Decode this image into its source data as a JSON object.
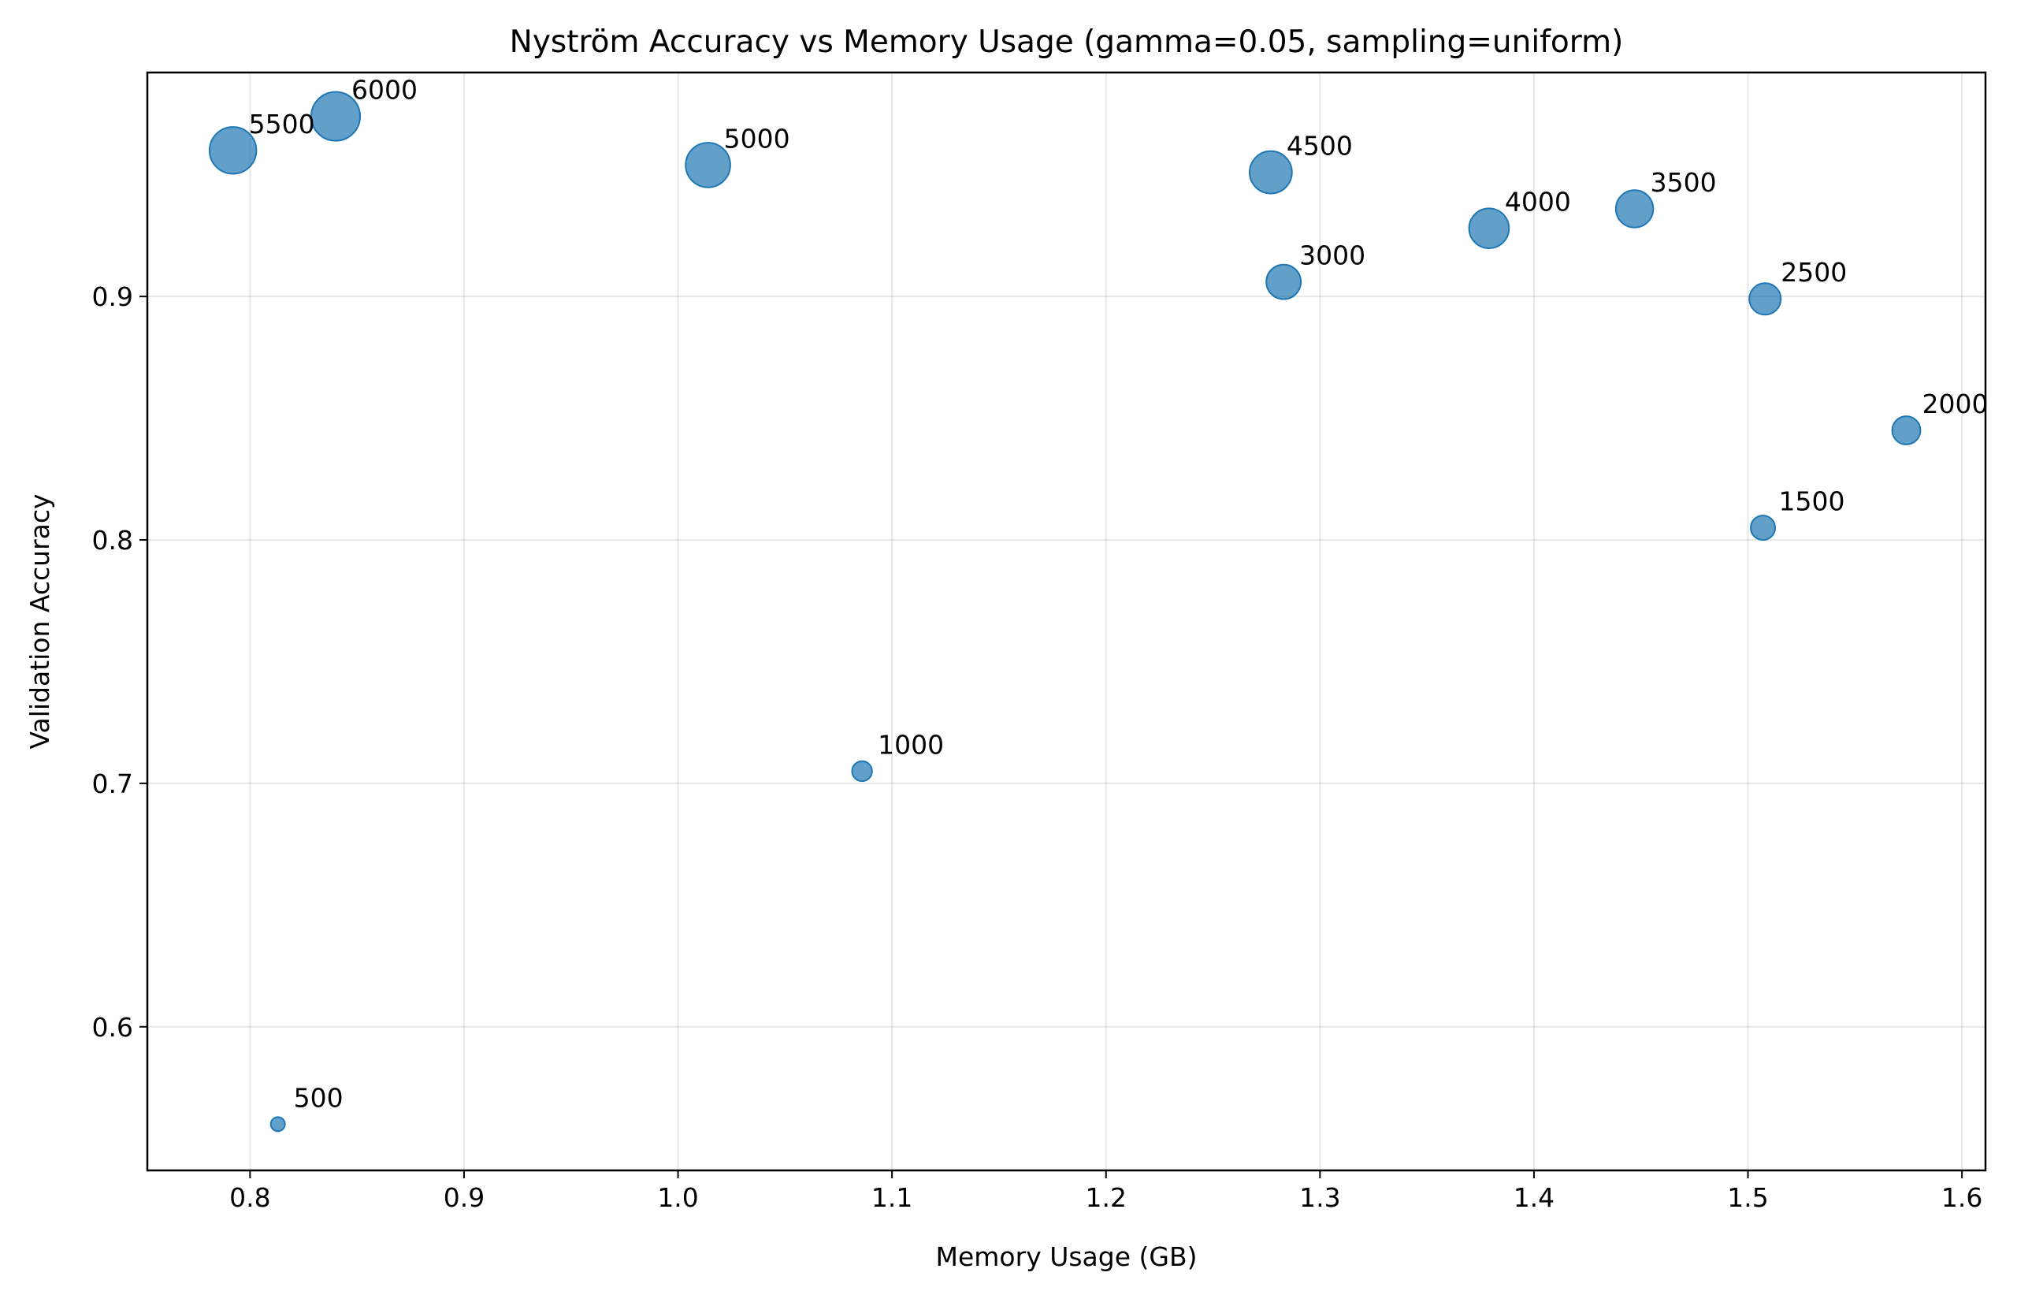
{
  "chart_data": {
    "type": "scatter",
    "title": "Nyström Accuracy vs Memory Usage (gamma=0.05, sampling=uniform)",
    "xlabel": "Memory Usage (GB)",
    "ylabel": "Validation Accuracy",
    "xlim": [
      0.752,
      1.611
    ],
    "ylim": [
      0.541,
      0.992
    ],
    "xticks": [
      0.8,
      0.9,
      1.0,
      1.1,
      1.2,
      1.3,
      1.4,
      1.5,
      1.6
    ],
    "xtick_labels": [
      "0.8",
      "0.9",
      "1.0",
      "1.1",
      "1.2",
      "1.3",
      "1.4",
      "1.5",
      "1.6"
    ],
    "yticks": [
      0.6,
      0.7,
      0.8,
      0.9
    ],
    "ytick_labels": [
      "0.6",
      "0.7",
      "0.8",
      "0.9"
    ],
    "grid": true,
    "color": "#1f77b4",
    "point_opacity": 0.7,
    "size_by": "label value",
    "points": [
      {
        "label": "500",
        "x": 0.813,
        "y": 0.56
      },
      {
        "label": "1000",
        "x": 1.086,
        "y": 0.705
      },
      {
        "label": "1500",
        "x": 1.507,
        "y": 0.805
      },
      {
        "label": "2000",
        "x": 1.574,
        "y": 0.845
      },
      {
        "label": "2500",
        "x": 1.508,
        "y": 0.899
      },
      {
        "label": "3000",
        "x": 1.283,
        "y": 0.906
      },
      {
        "label": "3500",
        "x": 1.447,
        "y": 0.936
      },
      {
        "label": "4000",
        "x": 1.379,
        "y": 0.928
      },
      {
        "label": "4500",
        "x": 1.277,
        "y": 0.951
      },
      {
        "label": "5000",
        "x": 1.014,
        "y": 0.954
      },
      {
        "label": "5500",
        "x": 0.792,
        "y": 0.96
      },
      {
        "label": "6000",
        "x": 0.84,
        "y": 0.974
      }
    ]
  }
}
